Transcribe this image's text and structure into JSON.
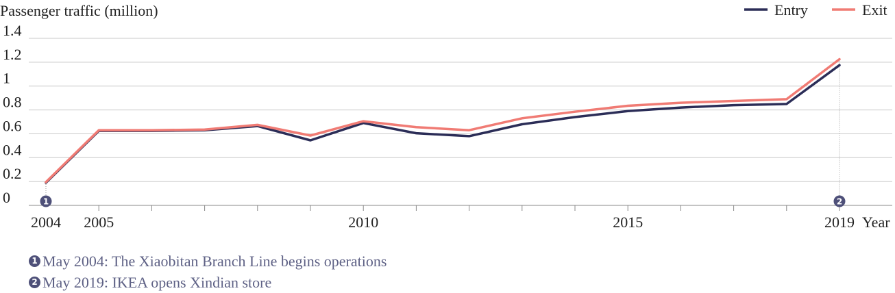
{
  "chart_data": {
    "type": "line",
    "title": "Passenger traffic (million)",
    "xlabel": "Year",
    "ylabel": "",
    "ylim": [
      0,
      1.4
    ],
    "yticks": [
      0,
      0.2,
      0.4,
      0.6,
      0.8,
      1,
      1.2,
      1.4
    ],
    "ytick_labels": [
      "0",
      "0.2",
      "0.4",
      "0.6",
      "0.8",
      "1",
      "1.2",
      "1.4"
    ],
    "xticks": [
      2004,
      2005,
      2010,
      2015,
      2019
    ],
    "xtick_labels": [
      "2004",
      "2005",
      "2010",
      "2015",
      "2019"
    ],
    "x": [
      2004,
      2005,
      2006,
      2007,
      2008,
      2009,
      2010,
      2011,
      2012,
      2013,
      2014,
      2015,
      2016,
      2017,
      2018,
      2019
    ],
    "series": [
      {
        "name": "Entry",
        "color": "#2b2d57",
        "values": [
          0.19,
          0.625,
          0.625,
          0.63,
          0.665,
          0.545,
          0.69,
          0.605,
          0.58,
          0.68,
          0.74,
          0.79,
          0.82,
          0.84,
          0.85,
          1.175
        ]
      },
      {
        "name": "Exit",
        "color": "#f07b74",
        "values": [
          0.195,
          0.63,
          0.63,
          0.635,
          0.675,
          0.585,
          0.705,
          0.655,
          0.63,
          0.73,
          0.785,
          0.835,
          0.86,
          0.875,
          0.89,
          1.225
        ]
      }
    ],
    "legend": "top-right",
    "grid": true,
    "annotations": [
      {
        "marker": "1",
        "x": 2004,
        "text": "May 2004: The Xiaobitan Branch Line begins operations"
      },
      {
        "marker": "2",
        "x": 2019,
        "text": "May 2019: IKEA opens Xindian store"
      }
    ]
  },
  "notes": [
    {
      "symbol": "1",
      "text": "May 2004: The Xiaobitan Branch Line begins operations"
    },
    {
      "symbol": "2",
      "text": "May 2019: IKEA opens Xindian store"
    }
  ]
}
